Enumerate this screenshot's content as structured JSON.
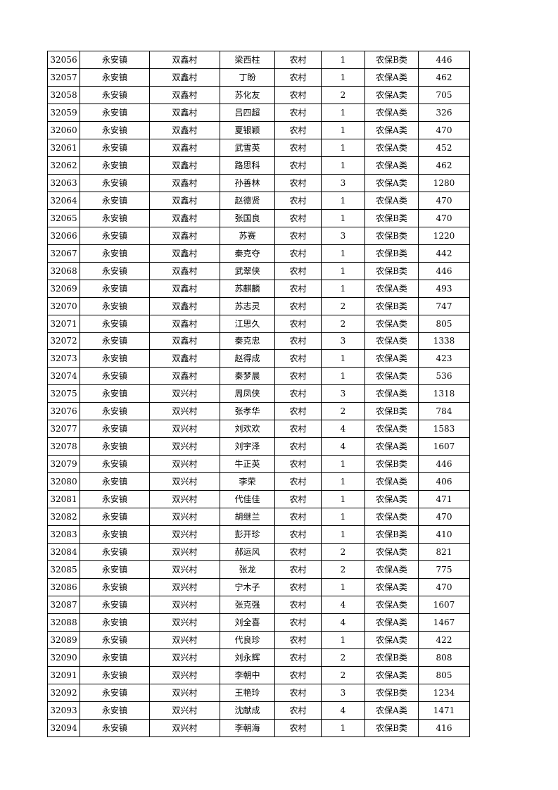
{
  "table": {
    "rows": [
      [
        "32056",
        "永安镇",
        "双鑫村",
        "梁西柱",
        "农村",
        "1",
        "农保B类",
        "446"
      ],
      [
        "32057",
        "永安镇",
        "双鑫村",
        "丁盼",
        "农村",
        "1",
        "农保A类",
        "462"
      ],
      [
        "32058",
        "永安镇",
        "双鑫村",
        "苏化友",
        "农村",
        "2",
        "农保A类",
        "705"
      ],
      [
        "32059",
        "永安镇",
        "双鑫村",
        "吕四超",
        "农村",
        "1",
        "农保A类",
        "326"
      ],
      [
        "32060",
        "永安镇",
        "双鑫村",
        "夏银颖",
        "农村",
        "1",
        "农保A类",
        "470"
      ],
      [
        "32061",
        "永安镇",
        "双鑫村",
        "武雪英",
        "农村",
        "1",
        "农保A类",
        "452"
      ],
      [
        "32062",
        "永安镇",
        "双鑫村",
        "路思科",
        "农村",
        "1",
        "农保A类",
        "462"
      ],
      [
        "32063",
        "永安镇",
        "双鑫村",
        "孙善林",
        "农村",
        "3",
        "农保A类",
        "1280"
      ],
      [
        "32064",
        "永安镇",
        "双鑫村",
        "赵德贤",
        "农村",
        "1",
        "农保A类",
        "470"
      ],
      [
        "32065",
        "永安镇",
        "双鑫村",
        "张国良",
        "农村",
        "1",
        "农保B类",
        "470"
      ],
      [
        "32066",
        "永安镇",
        "双鑫村",
        "苏赛",
        "农村",
        "3",
        "农保B类",
        "1220"
      ],
      [
        "32067",
        "永安镇",
        "双鑫村",
        "秦克夺",
        "农村",
        "1",
        "农保B类",
        "442"
      ],
      [
        "32068",
        "永安镇",
        "双鑫村",
        "武翠侠",
        "农村",
        "1",
        "农保B类",
        "446"
      ],
      [
        "32069",
        "永安镇",
        "双鑫村",
        "苏麒麟",
        "农村",
        "1",
        "农保A类",
        "493"
      ],
      [
        "32070",
        "永安镇",
        "双鑫村",
        "苏志灵",
        "农村",
        "2",
        "农保B类",
        "747"
      ],
      [
        "32071",
        "永安镇",
        "双鑫村",
        "江思久",
        "农村",
        "2",
        "农保A类",
        "805"
      ],
      [
        "32072",
        "永安镇",
        "双鑫村",
        "秦克忠",
        "农村",
        "3",
        "农保A类",
        "1338"
      ],
      [
        "32073",
        "永安镇",
        "双鑫村",
        "赵得成",
        "农村",
        "1",
        "农保A类",
        "423"
      ],
      [
        "32074",
        "永安镇",
        "双鑫村",
        "秦梦晨",
        "农村",
        "1",
        "农保A类",
        "536"
      ],
      [
        "32075",
        "永安镇",
        "双兴村",
        "周凤侠",
        "农村",
        "3",
        "农保A类",
        "1318"
      ],
      [
        "32076",
        "永安镇",
        "双兴村",
        "张孝华",
        "农村",
        "2",
        "农保B类",
        "784"
      ],
      [
        "32077",
        "永安镇",
        "双兴村",
        "刘欢欢",
        "农村",
        "4",
        "农保A类",
        "1583"
      ],
      [
        "32078",
        "永安镇",
        "双兴村",
        "刘宇泽",
        "农村",
        "4",
        "农保A类",
        "1607"
      ],
      [
        "32079",
        "永安镇",
        "双兴村",
        "牛正英",
        "农村",
        "1",
        "农保B类",
        "446"
      ],
      [
        "32080",
        "永安镇",
        "双兴村",
        "李荣",
        "农村",
        "1",
        "农保A类",
        "406"
      ],
      [
        "32081",
        "永安镇",
        "双兴村",
        "代佳佳",
        "农村",
        "1",
        "农保A类",
        "471"
      ],
      [
        "32082",
        "永安镇",
        "双兴村",
        "胡继兰",
        "农村",
        "1",
        "农保A类",
        "470"
      ],
      [
        "32083",
        "永安镇",
        "双兴村",
        "彭开珍",
        "农村",
        "1",
        "农保B类",
        "410"
      ],
      [
        "32084",
        "永安镇",
        "双兴村",
        "郝运风",
        "农村",
        "2",
        "农保A类",
        "821"
      ],
      [
        "32085",
        "永安镇",
        "双兴村",
        "张龙",
        "农村",
        "2",
        "农保A类",
        "775"
      ],
      [
        "32086",
        "永安镇",
        "双兴村",
        "宁木子",
        "农村",
        "1",
        "农保A类",
        "470"
      ],
      [
        "32087",
        "永安镇",
        "双兴村",
        "张克强",
        "农村",
        "4",
        "农保A类",
        "1607"
      ],
      [
        "32088",
        "永安镇",
        "双兴村",
        "刘全喜",
        "农村",
        "4",
        "农保A类",
        "1467"
      ],
      [
        "32089",
        "永安镇",
        "双兴村",
        "代良珍",
        "农村",
        "1",
        "农保A类",
        "422"
      ],
      [
        "32090",
        "永安镇",
        "双兴村",
        "刘永辉",
        "农村",
        "2",
        "农保B类",
        "808"
      ],
      [
        "32091",
        "永安镇",
        "双兴村",
        "李朝中",
        "农村",
        "2",
        "农保A类",
        "805"
      ],
      [
        "32092",
        "永安镇",
        "双兴村",
        "王艳玲",
        "农村",
        "3",
        "农保B类",
        "1234"
      ],
      [
        "32093",
        "永安镇",
        "双兴村",
        "沈献成",
        "农村",
        "4",
        "农保A类",
        "1471"
      ],
      [
        "32094",
        "永安镇",
        "双兴村",
        "李朝海",
        "农村",
        "1",
        "农保B类",
        "416"
      ]
    ]
  }
}
